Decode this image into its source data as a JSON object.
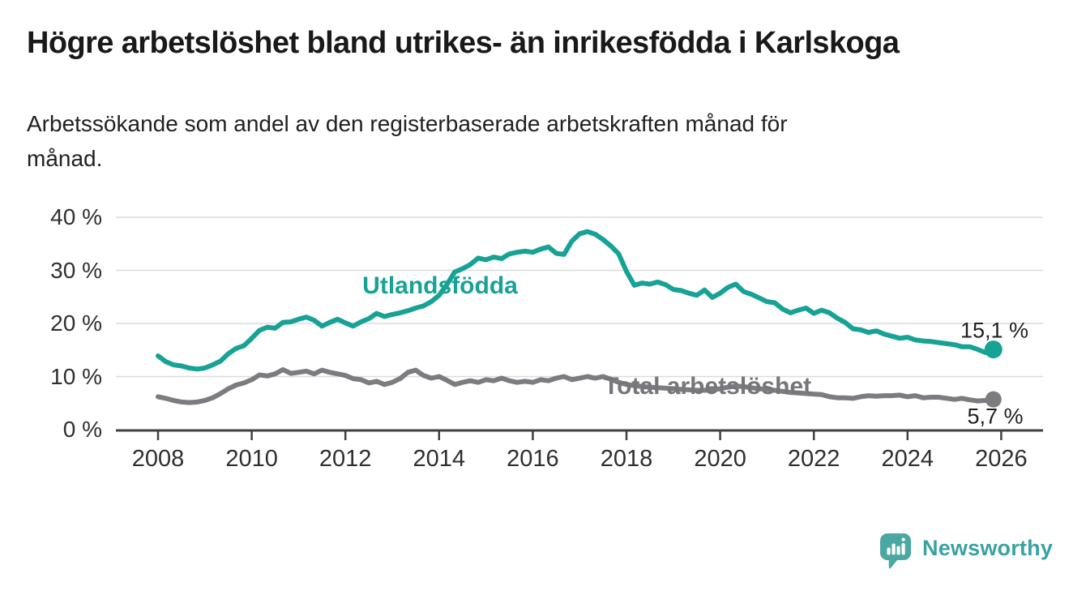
{
  "title": "Högre arbetslöshet bland utrikes- än inrikesfödda i Karlskoga",
  "subtitle": "Arbetssökande som andel av den registerbaserade arbetskraften månad för\nmånad.",
  "branding": {
    "logo_text": "Newsworthy"
  },
  "colors": {
    "foreign_born_line": "#17A295",
    "total_line": "#7C7C80",
    "grid": "#DCDCDC",
    "axis": "#404040",
    "tick_text": "#2F2F2F",
    "logo_icon": "#4BA7A2",
    "logo_text": "#3BA2A2"
  },
  "chart_data": {
    "type": "line",
    "title": "Högre arbetslöshet bland utrikes- än inrikesfödda i Karlskoga",
    "subtitle": "Arbetssökande som andel av den registerbaserade arbetskraften månad för månad.",
    "x_unit": "year (monthly data)",
    "x_start": 2008.0,
    "x_step_years": 0.166667,
    "xlim": [
      2007.1,
      2026.9
    ],
    "ylim": [
      0,
      42
    ],
    "grid": "horizontal",
    "legend_position": "inline-labels",
    "y_axis_ticks": [
      "0 %",
      "10 %",
      "20 %",
      "30 %",
      "40 %"
    ],
    "y_tick_values": [
      0,
      10,
      20,
      30,
      40
    ],
    "x_axis_ticks": [
      "2008",
      "2010",
      "2012",
      "2014",
      "2016",
      "2018",
      "2020",
      "2022",
      "2024",
      "2026"
    ],
    "series": [
      {
        "name": "Utlandsfödda",
        "inline_label": "Utlandsfödda",
        "end_label": "15,1 %",
        "end_value": 15.1,
        "color": "#17A295",
        "values": [
          13.9,
          12.8,
          12.2,
          12.0,
          11.6,
          11.4,
          11.6,
          12.2,
          12.9,
          14.3,
          15.3,
          15.8,
          17.2,
          18.7,
          19.3,
          19.1,
          20.2,
          20.3,
          20.8,
          21.2,
          20.6,
          19.5,
          20.2,
          20.8,
          20.1,
          19.5,
          20.3,
          20.9,
          21.9,
          21.3,
          21.7,
          22.0,
          22.4,
          22.9,
          23.3,
          24.1,
          25.3,
          27.3,
          29.7,
          30.3,
          31.1,
          32.3,
          32.0,
          32.5,
          32.2,
          33.1,
          33.4,
          33.6,
          33.4,
          34.0,
          34.4,
          33.2,
          33.0,
          35.5,
          36.9,
          37.3,
          36.8,
          35.8,
          34.6,
          33.1,
          29.8,
          27.2,
          27.6,
          27.4,
          27.8,
          27.3,
          26.4,
          26.2,
          25.7,
          25.3,
          26.3,
          24.9,
          25.7,
          26.8,
          27.4,
          26.0,
          25.5,
          24.8,
          24.1,
          23.9,
          22.7,
          22.0,
          22.5,
          22.9,
          21.9,
          22.5,
          22.0,
          21.0,
          20.2,
          19.0,
          18.8,
          18.3,
          18.6,
          18.0,
          17.6,
          17.2,
          17.4,
          16.9,
          16.7,
          16.6,
          16.4,
          16.2,
          16.0,
          15.6,
          15.6,
          15.1,
          14.5,
          15.1
        ]
      },
      {
        "name": "Total arbetslöshet",
        "inline_label": "Total arbetslöshet",
        "end_label": "5,7 %",
        "end_value": 5.7,
        "color": "#7C7C80",
        "values": [
          6.2,
          5.9,
          5.5,
          5.2,
          5.1,
          5.2,
          5.5,
          6.0,
          6.8,
          7.7,
          8.4,
          8.8,
          9.4,
          10.3,
          10.1,
          10.5,
          11.3,
          10.6,
          10.8,
          11.0,
          10.5,
          11.2,
          10.8,
          10.5,
          10.2,
          9.6,
          9.4,
          8.8,
          9.1,
          8.5,
          8.9,
          9.6,
          10.8,
          11.2,
          10.2,
          9.7,
          10.0,
          9.3,
          8.5,
          8.9,
          9.2,
          8.9,
          9.4,
          9.2,
          9.7,
          9.2,
          8.9,
          9.1,
          8.9,
          9.4,
          9.2,
          9.7,
          10.0,
          9.4,
          9.7,
          10.0,
          9.7,
          10.0,
          9.5,
          8.9,
          8.5,
          8.3,
          8.1,
          8.0,
          7.9,
          7.8,
          7.7,
          7.6,
          7.5,
          7.4,
          7.4,
          7.5,
          7.7,
          8.0,
          8.2,
          8.1,
          7.9,
          7.7,
          7.6,
          7.4,
          7.2,
          7.0,
          6.9,
          6.8,
          6.7,
          6.6,
          6.2,
          6.0,
          6.0,
          5.9,
          6.2,
          6.4,
          6.3,
          6.4,
          6.4,
          6.5,
          6.2,
          6.4,
          6.0,
          6.1,
          6.1,
          5.9,
          5.7,
          5.9,
          5.6,
          5.4,
          5.5,
          5.7
        ]
      }
    ]
  }
}
